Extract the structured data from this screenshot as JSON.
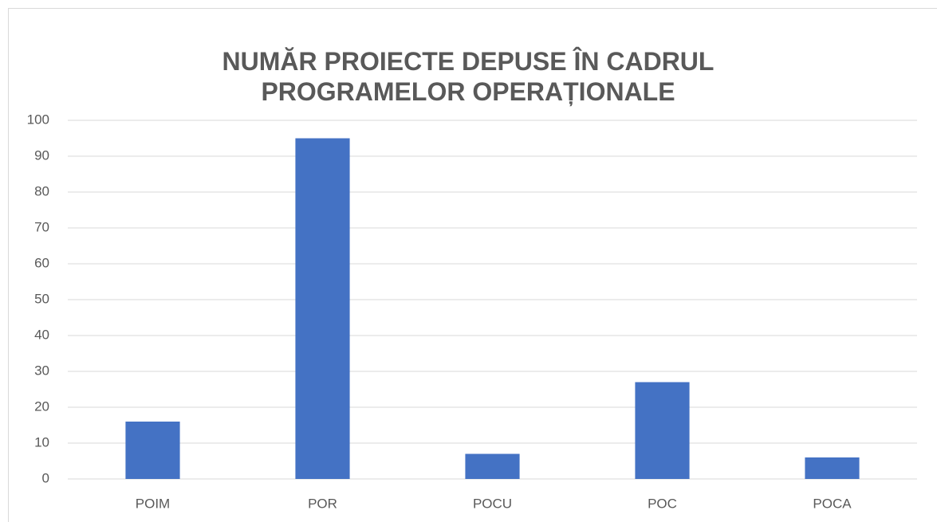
{
  "chart_data": {
    "type": "bar",
    "title": "NUMĂR PROIECTE DEPUSE ÎN CADRUL PROGRAMELOR OPERAȚIONALE",
    "categories": [
      "POIM",
      "POR",
      "POCU",
      "POC",
      "POCA"
    ],
    "values": [
      16,
      95,
      7,
      27,
      6
    ],
    "color": "#4472c4",
    "ylim": [
      0,
      100
    ],
    "yticks": [
      0,
      10,
      20,
      30,
      40,
      50,
      60,
      70,
      80,
      90,
      100
    ],
    "grid": true
  }
}
